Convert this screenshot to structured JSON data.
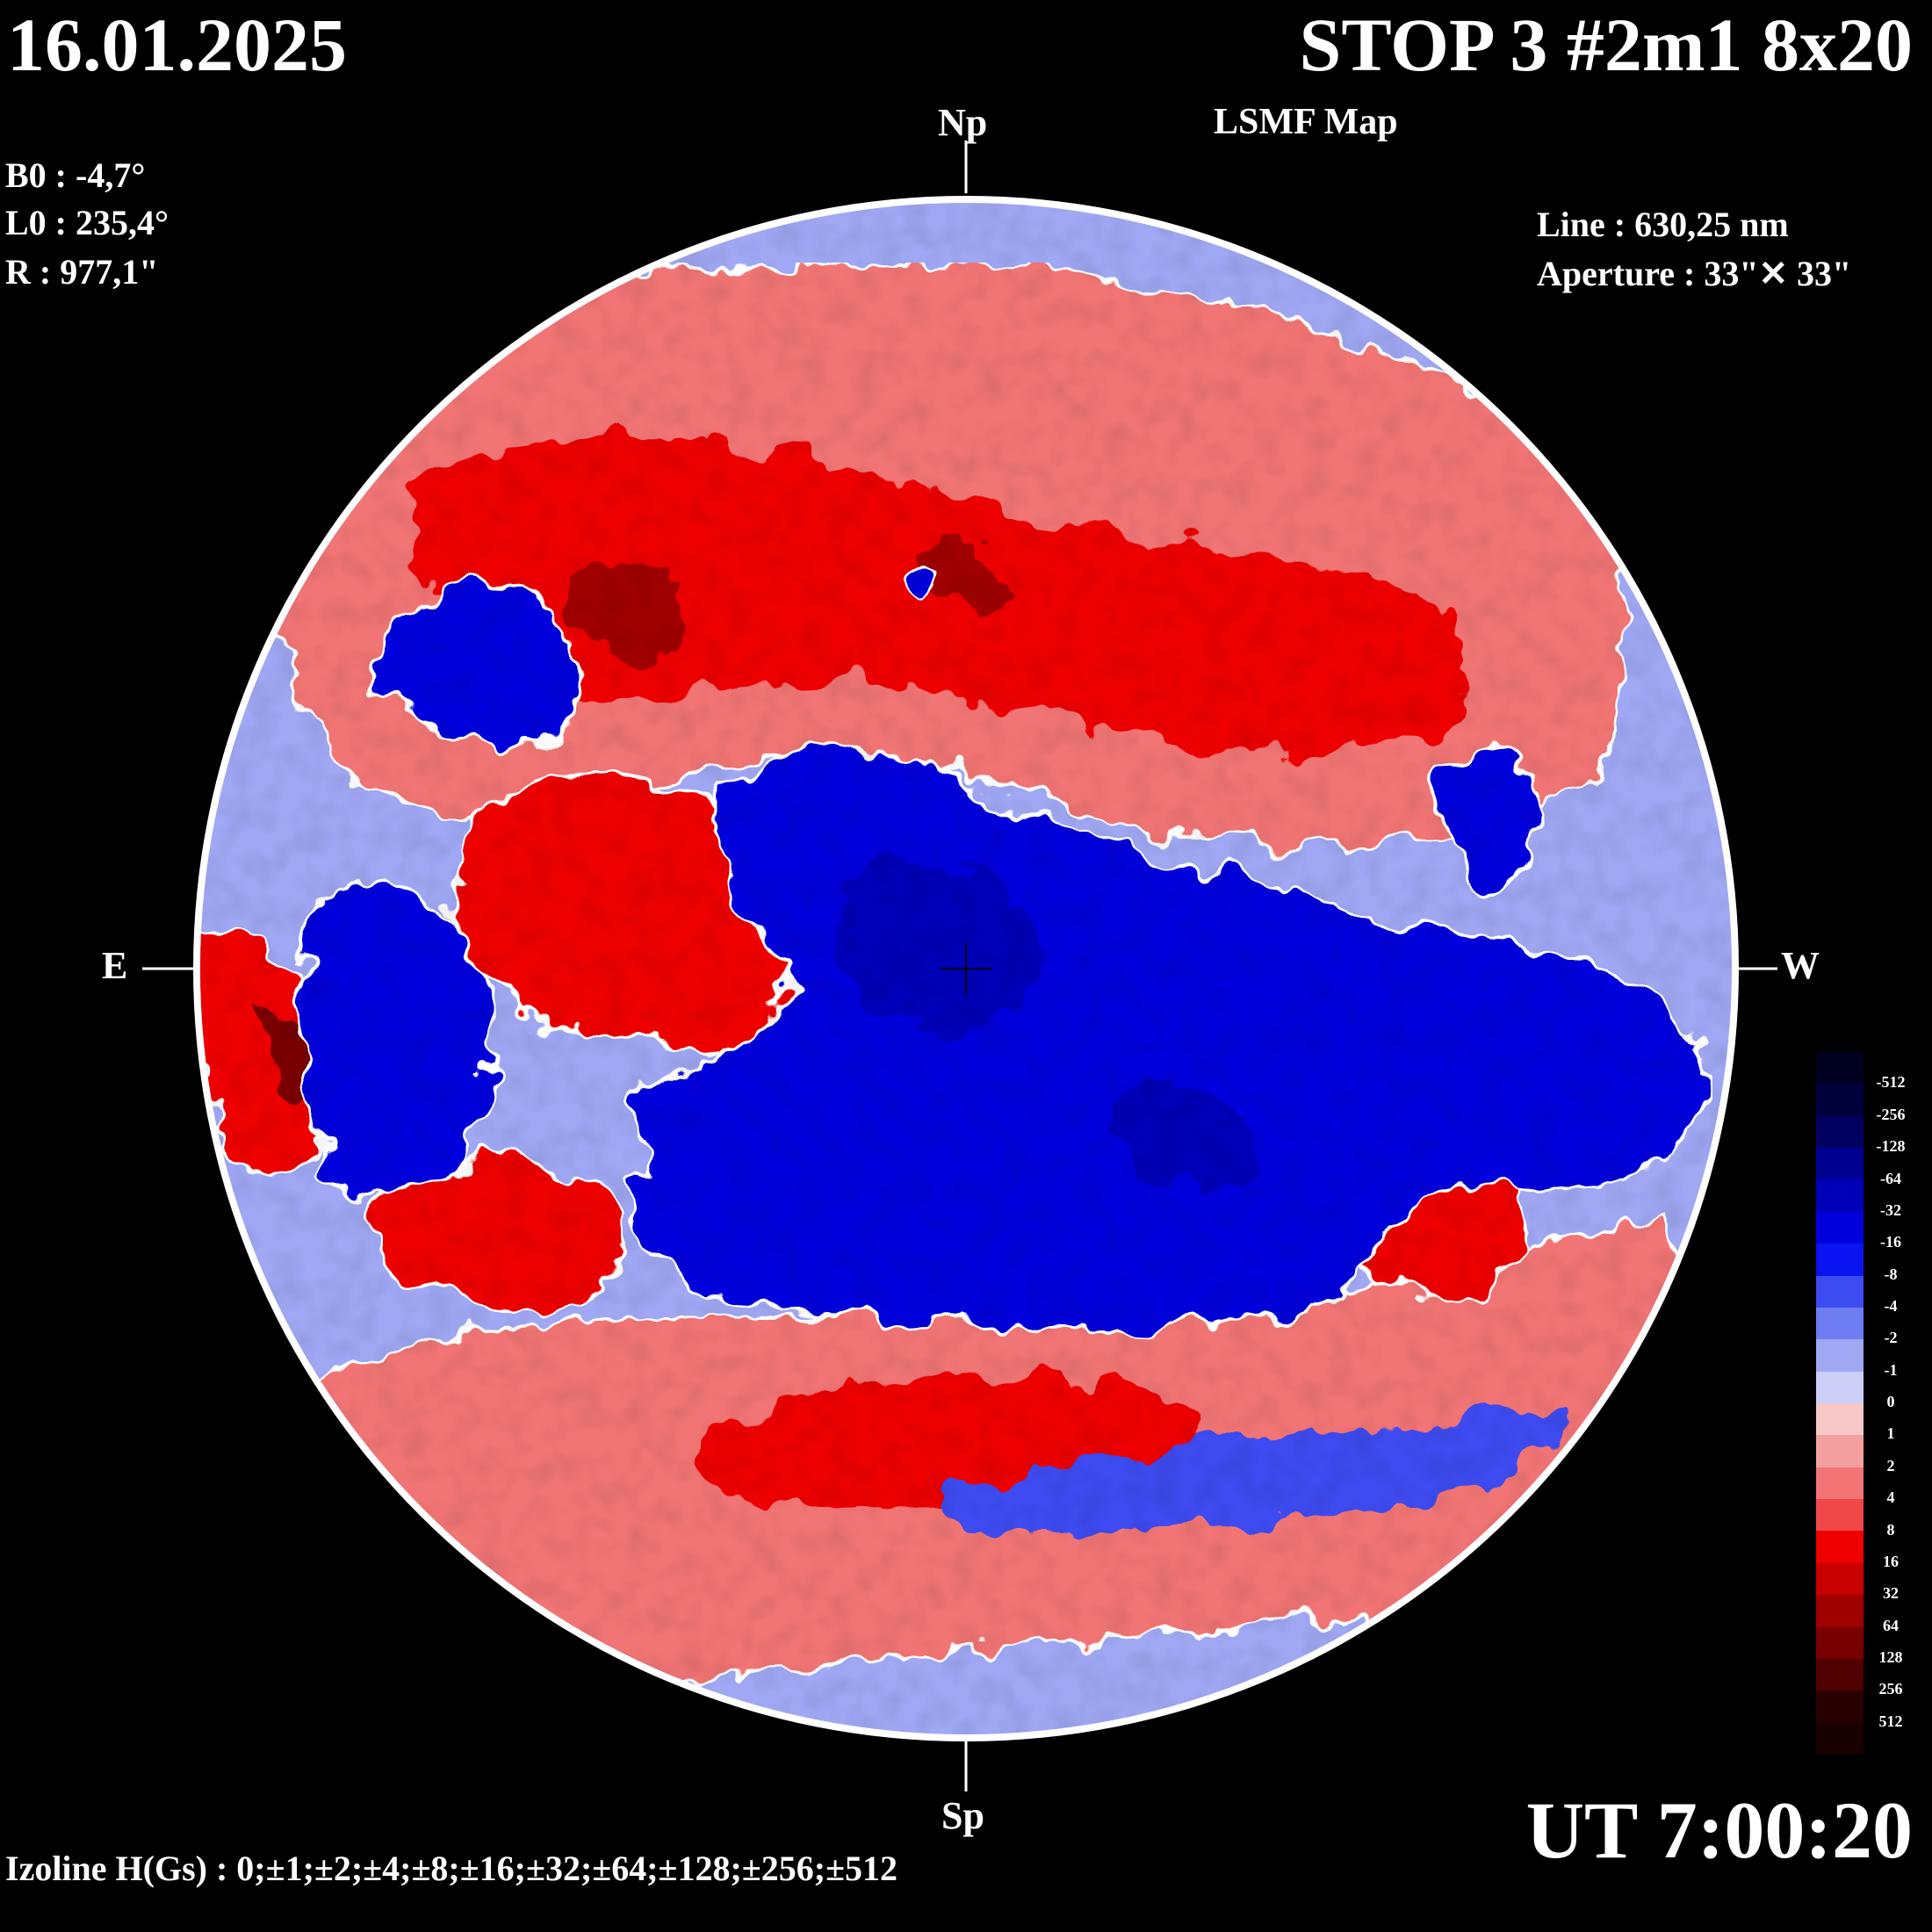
{
  "header": {
    "date": "16.01.2025",
    "title": "STOP 3 #2m1 8x20",
    "subtitle": "LSMF  Map"
  },
  "params": {
    "b0": "B0 : -4,7°",
    "l0": "L0 : 235,4°",
    "r": "R  : 977,1\"",
    "line": "Line :  630,25 nm",
    "aperture": "Aperture : 33\"✕ 33\""
  },
  "directions": {
    "north": "Np",
    "south": "Sp",
    "east": "E",
    "west": "W"
  },
  "time": "UT 7:00:20",
  "izoline": "Izoline H(Gs) : 0;±1;±2;±4;±8;±16;±32;±64;±128;±256;±512",
  "legend": [
    {
      "label": "-512",
      "color": "#000020"
    },
    {
      "label": "-256",
      "color": "#00003c"
    },
    {
      "label": "-128",
      "color": "#000060"
    },
    {
      "label": "-64",
      "color": "#000090"
    },
    {
      "label": "-32",
      "color": "#0000b8"
    },
    {
      "label": "-16",
      "color": "#0000dc"
    },
    {
      "label": "-8",
      "color": "#0a14f0"
    },
    {
      "label": "-4",
      "color": "#3c4cf0"
    },
    {
      "label": "-2",
      "color": "#6e7cf2"
    },
    {
      "label": "-1",
      "color": "#a0a8f4"
    },
    {
      "label": "0",
      "color": "#ccd0f8"
    },
    {
      "label": "1",
      "color": "#f6c8c8"
    },
    {
      "label": "2",
      "color": "#f4a0a0"
    },
    {
      "label": "4",
      "color": "#f27474"
    },
    {
      "label": "8",
      "color": "#f04848"
    },
    {
      "label": "16",
      "color": "#ee0000"
    },
    {
      "label": "32",
      "color": "#c80000"
    },
    {
      "label": "64",
      "color": "#a00000"
    },
    {
      "label": "128",
      "color": "#780000"
    },
    {
      "label": "256",
      "color": "#500000"
    },
    {
      "label": "512",
      "color": "#280000"
    }
  ],
  "colors": {
    "background": "#000000",
    "negative_polarity": "#0000dc",
    "positive_polarity": "#ee0000",
    "neutral_line": "#ffffff"
  }
}
